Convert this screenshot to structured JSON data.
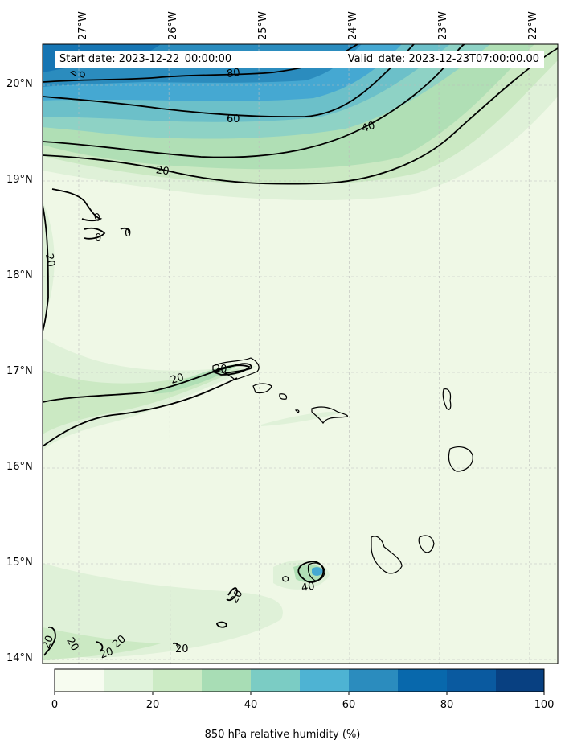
{
  "header": {
    "start_date": "Start date: 2023-12-22_00:00:00",
    "valid_date": "Valid_date: 2023-12-23T07:00:00.00"
  },
  "axes": {
    "longitude_labels": [
      "27°W",
      "26°W",
      "25°W",
      "24°W",
      "23°W",
      "22°W"
    ],
    "latitude_labels": [
      "20°N",
      "19°N",
      "18°N",
      "17°N",
      "16°N",
      "15°N",
      "14°N"
    ]
  },
  "contour_labels": [
    "80",
    "60",
    "40",
    "20",
    "20",
    "0",
    "0",
    "0",
    "20",
    "20",
    "40",
    "20",
    "20",
    "20",
    "20",
    "20",
    "20"
  ],
  "colorbar": {
    "label": "850 hPa relative humidity (%)",
    "ticks": [
      "0",
      "20",
      "40",
      "60",
      "80",
      "100"
    ],
    "colors": [
      "#f7fcf0",
      "#e0f3db",
      "#ccebc5",
      "#a8ddb5",
      "#7bccc4",
      "#4eb3d3",
      "#2b8cbe",
      "#0868ac",
      "#084081",
      "#08306b"
    ]
  },
  "map_colors": {
    "background": "#eff8e6",
    "level_10": "#dff1d8",
    "level_20": "#cbe9c3",
    "level_30": "#b0dfb5",
    "level_40": "#8ed2c5",
    "level_50": "#6cc0c9",
    "level_60": "#45a8d2",
    "level_70": "#2b8cbe",
    "level_80": "#1675b3"
  }
}
